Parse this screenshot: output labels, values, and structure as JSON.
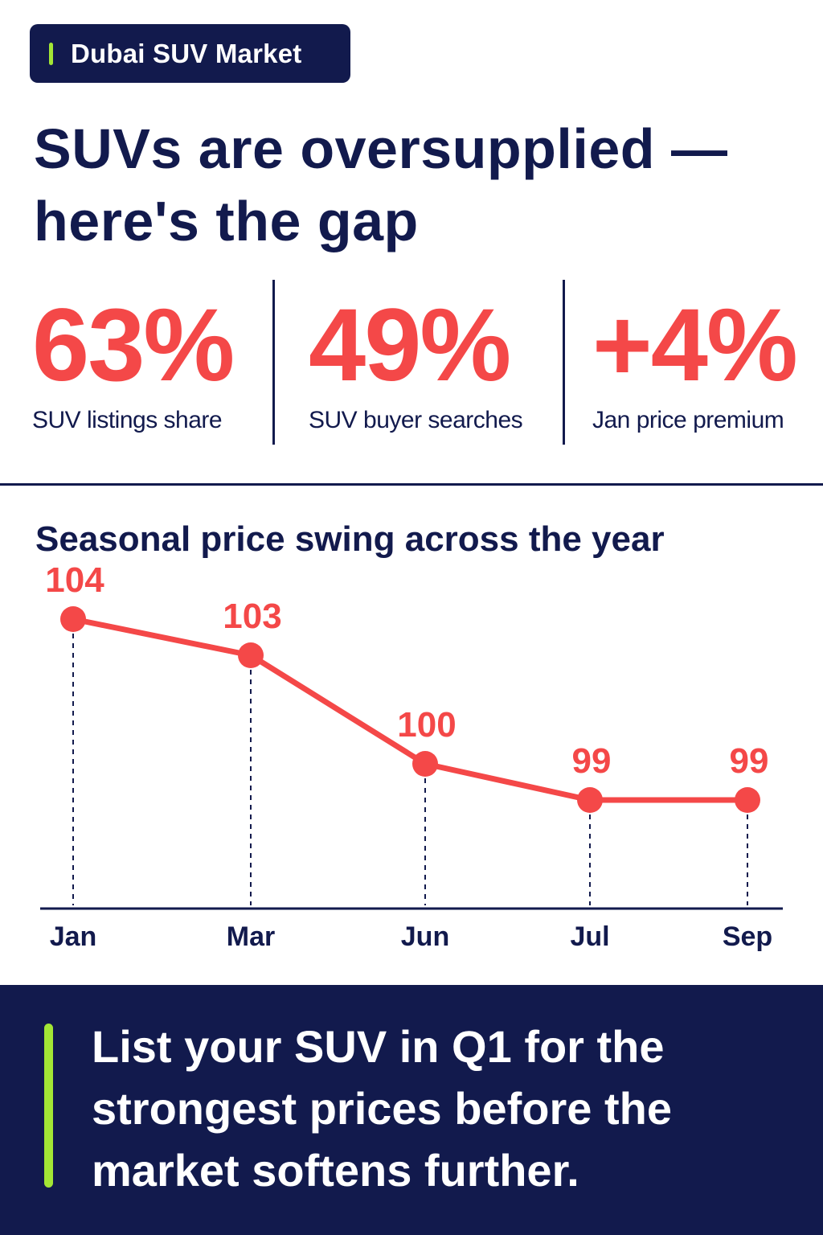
{
  "tag": {
    "label": "Dubai SUV Market"
  },
  "headline": "SUVs are oversupplied — here's the gap",
  "stats": [
    {
      "value": "63%",
      "label": "SUV listings share"
    },
    {
      "value": "49%",
      "label": "SUV buyer searches"
    },
    {
      "value": "+4%",
      "label": "Jan price premium"
    }
  ],
  "chart_data": {
    "type": "line",
    "title": "Seasonal price swing across the year",
    "categories": [
      "Jan",
      "Mar",
      "Jun",
      "Jul",
      "Sep"
    ],
    "series": [
      {
        "values": [
          104,
          103,
          100,
          99,
          99
        ]
      }
    ],
    "data_labels": [
      "104",
      "103",
      "100",
      "99",
      "99"
    ],
    "ylim": [
      96,
      105
    ],
    "xlabel": "",
    "ylabel": "",
    "grid": false,
    "colors": {
      "line": "#f44848",
      "axis": "#121a4d"
    }
  },
  "cta": {
    "text": "List your SUV in Q1 for the strongest prices before the market softens further."
  },
  "colors": {
    "navy": "#121a4d",
    "red": "#f44848",
    "lime": "#a3e635"
  }
}
